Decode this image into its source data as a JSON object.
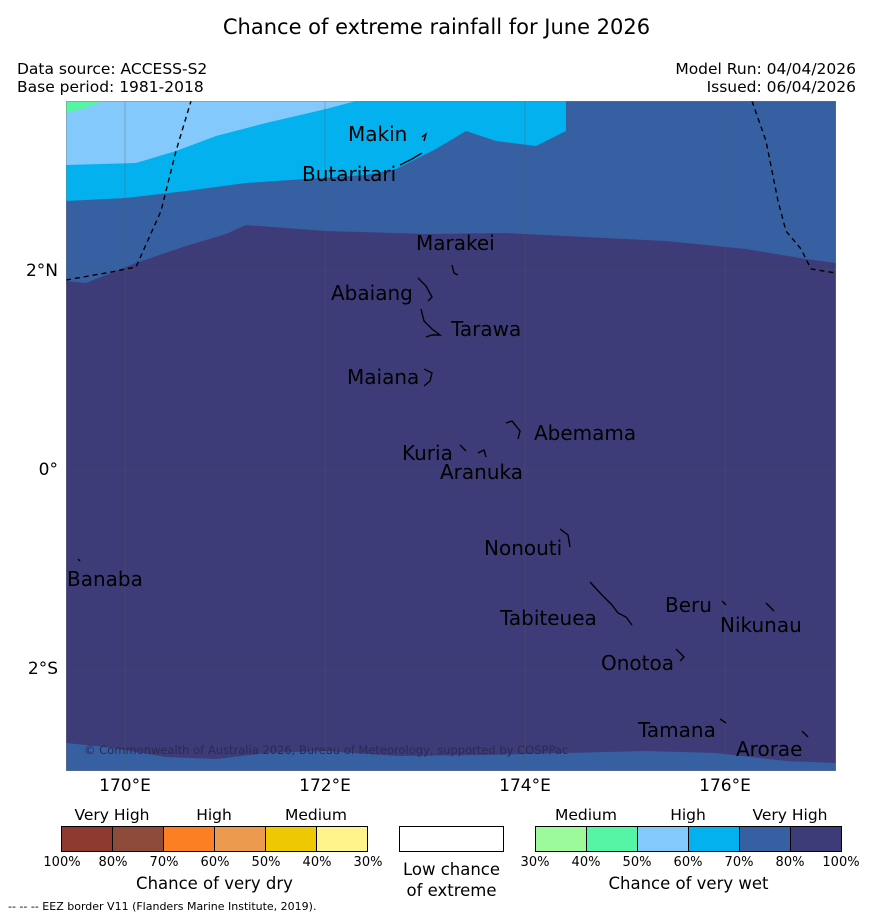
{
  "title": "Chance of extreme rainfall for June 2026",
  "header": {
    "data_source": "Data source: ACCESS-S2",
    "base_period": "Base period: 1981-2018",
    "model_run": "Model Run: 04/04/2026",
    "issued": "Issued: 06/04/2026"
  },
  "map": {
    "lat_labels": [
      "2°N",
      "0°",
      "2°S"
    ],
    "lon_labels": [
      "170°E",
      "172°E",
      "174°E",
      "176°E"
    ],
    "places": [
      {
        "name": "Makin"
      },
      {
        "name": "Butaritari"
      },
      {
        "name": "Marakei"
      },
      {
        "name": "Abaiang"
      },
      {
        "name": "Tarawa"
      },
      {
        "name": "Maiana"
      },
      {
        "name": "Abemama"
      },
      {
        "name": "Kuria"
      },
      {
        "name": "Aranuka"
      },
      {
        "name": "Nonouti"
      },
      {
        "name": "Banaba"
      },
      {
        "name": "Beru"
      },
      {
        "name": "Tabiteuea"
      },
      {
        "name": "Nikunau"
      },
      {
        "name": "Onotoa"
      },
      {
        "name": "Tamana"
      },
      {
        "name": "Arorae"
      }
    ],
    "copyright": "© Commonwealth of Australia 2026, Bureau of Meteorology, supported by COSPPac",
    "colors": {
      "wet_40": "#55f5a5",
      "wet_50": "#84c9fc",
      "wet_60": "#02b1ee",
      "wet_70": "#3660a2",
      "wet_80": "#3d3c78"
    }
  },
  "legend": {
    "dry": {
      "categories": [
        "Very High",
        "High",
        "Medium"
      ],
      "ticks": [
        "100%",
        "80%",
        "70%",
        "60%",
        "50%",
        "40%",
        "30%"
      ],
      "colors": [
        "#8e3a30",
        "#8e4a3a",
        "#fd7f24",
        "#ec9b4e",
        "#eec803",
        "#fdf48c"
      ],
      "title": "Chance of very dry"
    },
    "neutral": {
      "line1": "Low chance",
      "line2": "of extreme"
    },
    "wet": {
      "categories": [
        "Medium",
        "High",
        "Very High"
      ],
      "ticks": [
        "30%",
        "40%",
        "50%",
        "60%",
        "70%",
        "80%",
        "100%"
      ],
      "colors": [
        "#9dfa9b",
        "#55f5a5",
        "#84c9fc",
        "#02b1ee",
        "#3660a2",
        "#3d3c78"
      ],
      "title": "Chance of very wet"
    }
  },
  "footnote": "--  --  -- EEZ border V11 (Flanders Marine Institute, 2019)."
}
